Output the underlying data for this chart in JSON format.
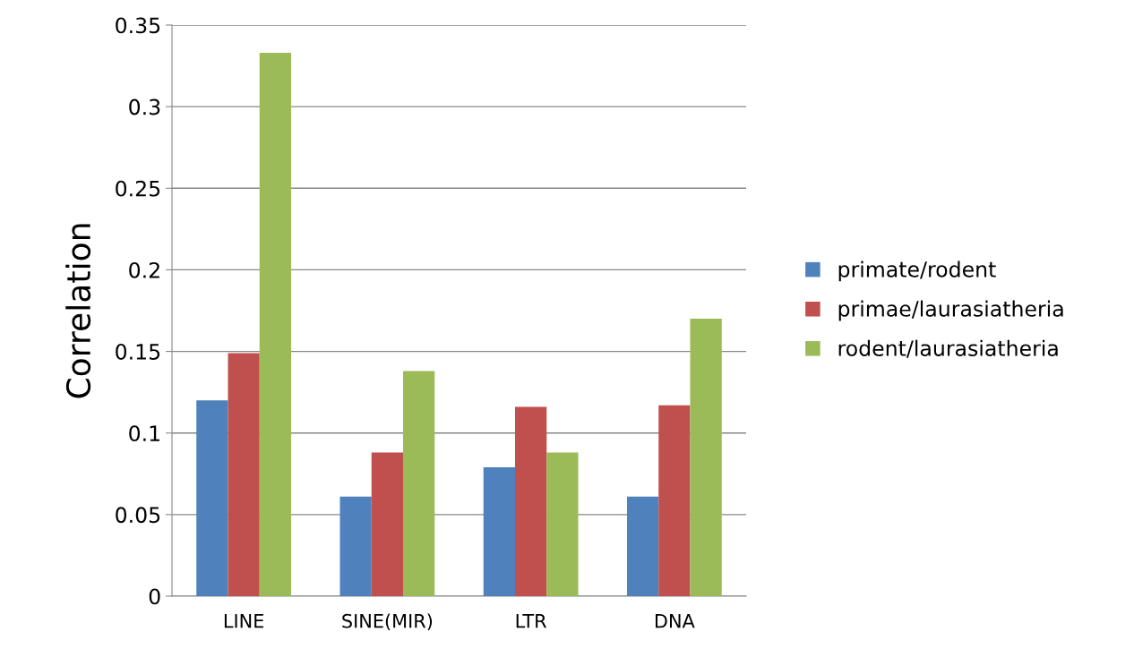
{
  "chart_data": {
    "type": "bar",
    "ylabel": "Correlation",
    "categories": [
      "LINE",
      "SINE(MIR)",
      "LTR",
      "DNA"
    ],
    "series": [
      {
        "name": "primate/rodent",
        "color": "#4f81bd",
        "values": [
          0.12,
          0.061,
          0.079,
          0.061
        ]
      },
      {
        "name": "primae/laurasiatheria",
        "color": "#c0504d",
        "values": [
          0.149,
          0.088,
          0.116,
          0.117
        ]
      },
      {
        "name": "rodent/laurasiatheria",
        "color": "#9bbb59",
        "values": [
          0.333,
          0.138,
          0.088,
          0.17
        ]
      }
    ],
    "ylim": [
      0,
      0.35
    ],
    "yticks": [
      0,
      0.05,
      0.1,
      0.15,
      0.2,
      0.25,
      0.3,
      0.35
    ],
    "grid": "y",
    "legend": "right"
  }
}
